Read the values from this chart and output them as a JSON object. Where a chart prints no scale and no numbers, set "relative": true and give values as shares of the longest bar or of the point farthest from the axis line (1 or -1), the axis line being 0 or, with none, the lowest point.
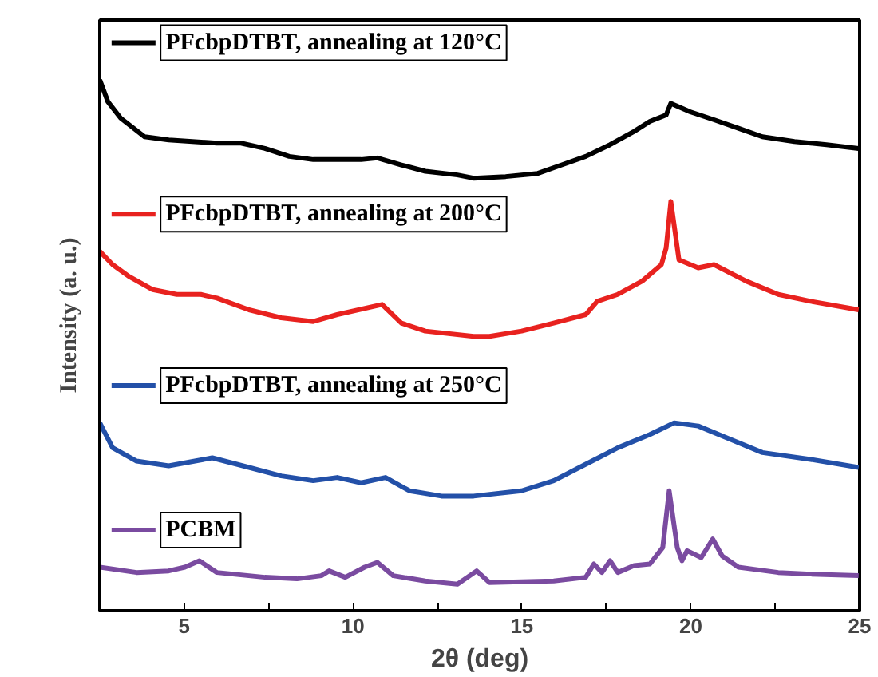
{
  "chart_data": {
    "type": "line",
    "relative": true,
    "legend": "left",
    "xlabel": "2θ (deg)",
    "ylabel": "Intensity (a. u.)",
    "xlim": [
      2.5,
      25
    ],
    "xticks": [
      5,
      {
        "value": 7.5,
        "label": null
      },
      10,
      {
        "value": 12.5,
        "label": null
      },
      15,
      {
        "value": 17.5,
        "label": null
      },
      20,
      {
        "value": 22.5,
        "label": null
      },
      25
    ],
    "series": [
      {
        "name": "PFcbpDTBT, annealing at 120°C",
        "color": "#000000",
        "x": [
          2.5,
          2.74,
          3.12,
          3.83,
          4.54,
          5.97,
          6.68,
          7.39,
          8.11,
          8.82,
          10.24,
          10.72,
          11.43,
          12.14,
          13.09,
          13.57,
          14.52,
          15.47,
          16.18,
          16.89,
          17.61,
          18.32,
          18.79,
          19.27,
          19.41,
          19.98,
          20.69,
          21.41,
          22.12,
          23.07,
          24.02,
          24.97
        ],
        "values": [
          1.0,
          0.959,
          0.928,
          0.893,
          0.887,
          0.881,
          0.881,
          0.871,
          0.856,
          0.85,
          0.85,
          0.853,
          0.84,
          0.828,
          0.821,
          0.815,
          0.818,
          0.824,
          0.84,
          0.856,
          0.878,
          0.903,
          0.922,
          0.934,
          0.956,
          0.94,
          0.925,
          0.909,
          0.893,
          0.884,
          0.878,
          0.871
        ]
      },
      {
        "name": "PFcbpDTBT, annealing at 200°C",
        "color": "#e8221f",
        "x": [
          2.5,
          2.88,
          3.36,
          4.07,
          4.78,
          5.49,
          5.97,
          6.92,
          7.87,
          8.82,
          9.53,
          10.86,
          11.43,
          12.14,
          13.57,
          14.04,
          14.99,
          15.94,
          16.89,
          17.23,
          17.84,
          18.56,
          19.13,
          19.27,
          19.41,
          19.65,
          20.22,
          20.69,
          21.64,
          22.59,
          23.55,
          24.97
        ],
        "values": [
          0.677,
          0.652,
          0.63,
          0.605,
          0.596,
          0.596,
          0.589,
          0.567,
          0.552,
          0.545,
          0.558,
          0.577,
          0.542,
          0.527,
          0.517,
          0.517,
          0.527,
          0.542,
          0.558,
          0.583,
          0.596,
          0.621,
          0.652,
          0.683,
          0.771,
          0.661,
          0.646,
          0.652,
          0.621,
          0.596,
          0.583,
          0.567
        ]
      },
      {
        "name": "PFcbpDTBT, annealing at 250°C",
        "color": "#2350a8",
        "x": [
          2.5,
          2.88,
          3.59,
          4.54,
          5.83,
          6.92,
          7.87,
          8.82,
          9.53,
          10.24,
          10.96,
          11.67,
          12.62,
          13.57,
          14.99,
          15.94,
          16.89,
          17.84,
          18.79,
          19.51,
          20.22,
          21.17,
          22.12,
          23.55,
          24.97
        ],
        "values": [
          0.354,
          0.307,
          0.282,
          0.273,
          0.288,
          0.27,
          0.254,
          0.245,
          0.251,
          0.241,
          0.251,
          0.226,
          0.216,
          0.216,
          0.226,
          0.245,
          0.276,
          0.307,
          0.332,
          0.354,
          0.348,
          0.323,
          0.298,
          0.285,
          0.27
        ]
      },
      {
        "name": "PCBM",
        "color": "#7a4ba0",
        "x": [
          2.5,
          3.59,
          4.54,
          5.02,
          5.45,
          5.97,
          7.39,
          8.34,
          9.06,
          9.29,
          9.77,
          10.34,
          10.72,
          11.19,
          12.14,
          13.09,
          13.66,
          14.04,
          15.94,
          16.89,
          17.13,
          17.37,
          17.61,
          17.84,
          18.32,
          18.79,
          19.17,
          19.36,
          19.6,
          19.74,
          19.89,
          20.31,
          20.65,
          20.93,
          21.41,
          21.88,
          22.59,
          23.55,
          24.97
        ],
        "values": [
          0.082,
          0.072,
          0.075,
          0.082,
          0.094,
          0.072,
          0.063,
          0.06,
          0.066,
          0.075,
          0.063,
          0.082,
          0.091,
          0.066,
          0.056,
          0.05,
          0.075,
          0.053,
          0.056,
          0.063,
          0.088,
          0.072,
          0.094,
          0.072,
          0.085,
          0.088,
          0.119,
          0.226,
          0.119,
          0.094,
          0.113,
          0.1,
          0.135,
          0.103,
          0.082,
          0.078,
          0.072,
          0.069,
          0.066
        ]
      }
    ]
  }
}
